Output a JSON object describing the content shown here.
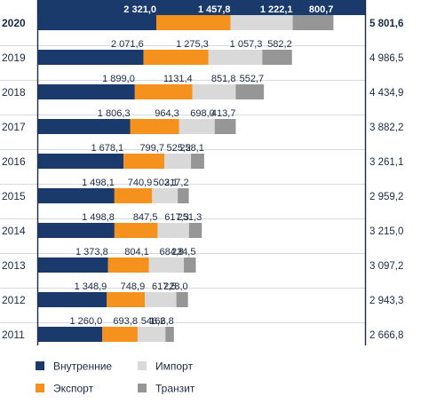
{
  "chart_data": {
    "type": "bar",
    "orientation": "horizontal",
    "stacked": true,
    "categories": [
      "2020",
      "2019",
      "2018",
      "2017",
      "2016",
      "2015",
      "2014",
      "2013",
      "2012",
      "2011"
    ],
    "series": [
      {
        "name": "Внутренние",
        "color": "#1a3a6b",
        "values": [
          2321.0,
          2071.6,
          1899.0,
          1806.3,
          1678.1,
          1498.1,
          1498.8,
          1373.8,
          1348.9,
          1260.0
        ]
      },
      {
        "name": "Экспорт",
        "color": "#f5921e",
        "values": [
          1457.8,
          1275.3,
          1131.4,
          964.3,
          799.7,
          740.9,
          847.5,
          804.1,
          748.9,
          693.8
        ]
      },
      {
        "name": "Импорт",
        "color": "#d9d9d9",
        "values": [
          1222.1,
          1057.3,
          851.8,
          698.0,
          525.2,
          503.1,
          617.3,
          684.8,
          617.5,
          546.2
        ]
      },
      {
        "name": "Транзит",
        "color": "#969696",
        "values": [
          800.7,
          582.2,
          552.7,
          413.7,
          258.1,
          217.2,
          251.3,
          234.5,
          228.0,
          166.8
        ]
      }
    ],
    "value_labels": [
      [
        "2 321,0",
        "1 457,8",
        "1 222,1",
        "800,7"
      ],
      [
        "2 071,6",
        "1 275,3",
        "1 057,3",
        "582,2"
      ],
      [
        "1 899,0",
        "1131,4",
        "851,8",
        "552,7"
      ],
      [
        "1 806,3",
        "964,3",
        "698,0",
        "413,7"
      ],
      [
        "1 678,1",
        "799,7",
        "525,2",
        "258,1"
      ],
      [
        "1 498,1",
        "740,9",
        "503,1",
        "217,2"
      ],
      [
        "1 498,8",
        "847,5",
        "617,3",
        "251,3"
      ],
      [
        "1 373,8",
        "804,1",
        "684,8",
        "234,5"
      ],
      [
        "1 348,9",
        "748,9",
        "617,5",
        "228,0"
      ],
      [
        "1 260,0",
        "693,8",
        "546,2",
        "166,8"
      ]
    ],
    "totals": [
      5801.6,
      4986.5,
      4434.9,
      3882.2,
      3261.1,
      2959.2,
      3215.0,
      3097.2,
      2943.3,
      2666.8
    ],
    "total_labels": [
      "5 801,6",
      "4 986,5",
      "4 434,9",
      "3 882,2",
      "3 261,1",
      "2 959,2",
      "3 215,0",
      "3 097,2",
      "2 943,3",
      "2 666,8"
    ],
    "highlight_category": "2020",
    "xlim": [
      0,
      6000
    ],
    "grid": false,
    "legend_position": "bottom-left",
    "title": "",
    "xlabel": "",
    "ylabel": ""
  }
}
